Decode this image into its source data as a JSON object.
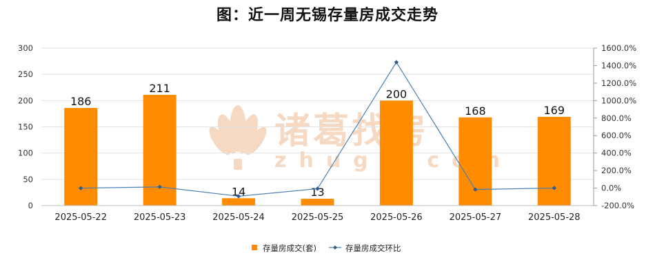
{
  "colors": {
    "bar": "#FF8C00",
    "line": "#4A7FB5",
    "grid": "#E2E2E2",
    "watermark": "#F6D9C2"
  },
  "watermark": {
    "brand": "诸葛找房",
    "domain": "zhuge.com"
  },
  "chart_data": {
    "type": "bar+line",
    "title": "图：近一周无锡存量房成交走势",
    "categories": [
      "2025-05-22",
      "2025-05-23",
      "2025-05-24",
      "2025-05-25",
      "2025-05-26",
      "2025-05-27",
      "2025-05-28"
    ],
    "series": [
      {
        "name": "存量房成交(套)",
        "type": "bar",
        "axis": "left",
        "values": [
          186,
          211,
          14,
          13,
          200,
          168,
          169
        ]
      },
      {
        "name": "存量房成交环比",
        "type": "line",
        "axis": "right",
        "values": [
          -1.0,
          13.4,
          -93.4,
          -7.1,
          1438.5,
          -16.0,
          0.6
        ]
      }
    ],
    "left_axis": {
      "ylim": [
        0,
        300
      ],
      "ticks": [
        "0",
        "50",
        "100",
        "150",
        "200",
        "250",
        "300"
      ]
    },
    "right_axis": {
      "ylim": [
        -200,
        1600
      ],
      "ticks": [
        "-200.0%",
        "0.0%",
        "200.0%",
        "400.0%",
        "600.0%",
        "800.0%",
        "1000.0%",
        "1200.0%",
        "1400.0%",
        "1600.0%"
      ]
    },
    "grid": true,
    "legend_position": "bottom"
  }
}
